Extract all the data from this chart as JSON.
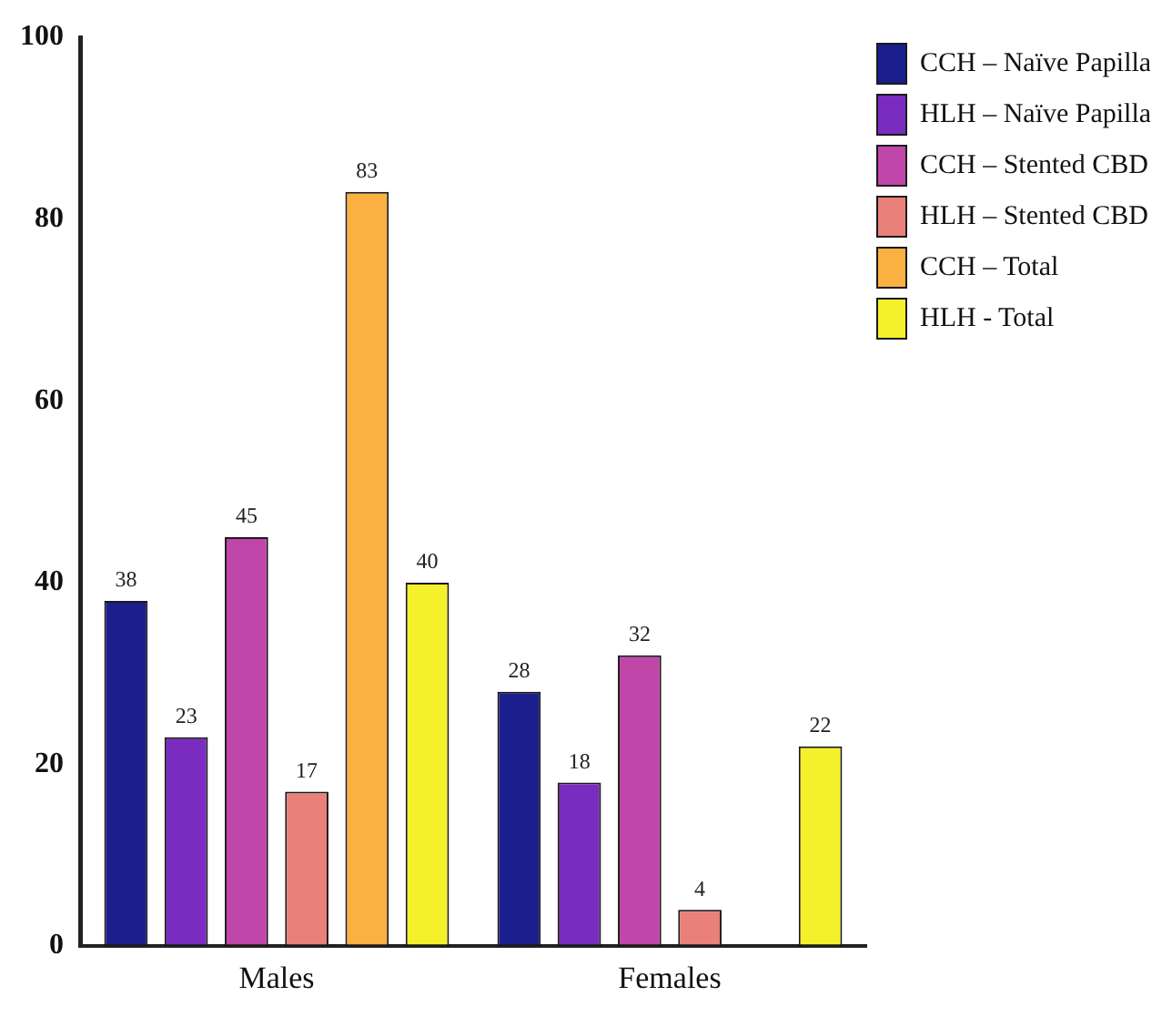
{
  "chart_data": {
    "type": "bar",
    "categories": [
      "Males",
      "Females"
    ],
    "series": [
      {
        "name": "CCH – Naïve Papilla",
        "color": "#1b1f8e",
        "values": [
          38,
          28
        ]
      },
      {
        "name": "HLH – Naïve Papilla",
        "color": "#7a2cc0",
        "values": [
          23,
          18
        ]
      },
      {
        "name": "CCH – Stented CBD",
        "color": "#c146a9",
        "values": [
          45,
          32
        ]
      },
      {
        "name": "HLH – Stented CBD",
        "color": "#e9807a",
        "values": [
          17,
          4
        ]
      },
      {
        "name": "CCH – Total",
        "color": "#fbb042",
        "values": [
          83,
          null
        ]
      },
      {
        "name": "HLH - Total",
        "color": "#f4f02c",
        "values": [
          40,
          22
        ]
      }
    ],
    "ylim": [
      0,
      100
    ],
    "yticks": [
      0,
      20,
      40,
      60,
      80,
      100
    ],
    "data_labels": true,
    "grid": false,
    "legend": "top right"
  }
}
